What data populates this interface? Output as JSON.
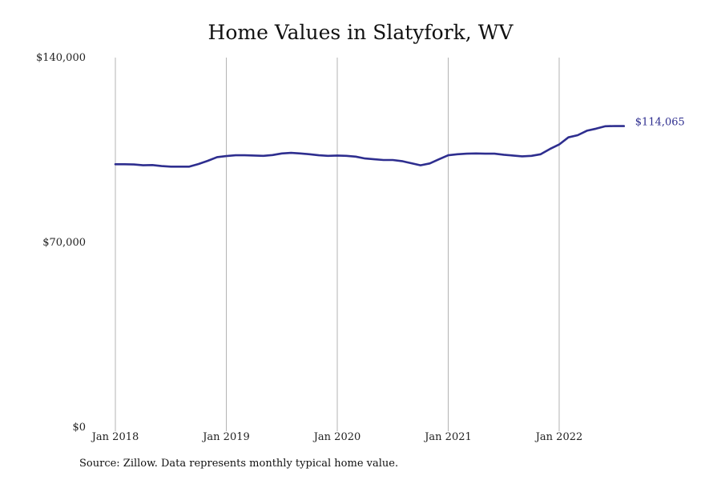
{
  "chart_data": {
    "type": "line",
    "title": "Home Values in Slatyfork, WV",
    "xlabel": "",
    "ylabel": "",
    "ylim": [
      0,
      140000
    ],
    "y_ticks": [
      {
        "value": 0,
        "label": "$0"
      },
      {
        "value": 70000,
        "label": "$70,000"
      },
      {
        "value": 140000,
        "label": "$140,000"
      }
    ],
    "x_ticks": [
      {
        "value": "2018-01",
        "label": "Jan 2018"
      },
      {
        "value": "2019-01",
        "label": "Jan 2019"
      },
      {
        "value": "2020-01",
        "label": "Jan 2020"
      },
      {
        "value": "2021-01",
        "label": "Jan 2021"
      },
      {
        "value": "2022-01",
        "label": "Jan 2022"
      }
    ],
    "grid": "vertical gridlines at year ticks",
    "series": [
      {
        "color": "#2e2e8f",
        "x": [
          "2018-01",
          "2018-02",
          "2018-03",
          "2018-04",
          "2018-05",
          "2018-06",
          "2018-07",
          "2018-08",
          "2018-09",
          "2018-10",
          "2018-11",
          "2018-12",
          "2019-01",
          "2019-02",
          "2019-03",
          "2019-04",
          "2019-05",
          "2019-06",
          "2019-07",
          "2019-08",
          "2019-09",
          "2019-10",
          "2019-11",
          "2019-12",
          "2020-01",
          "2020-02",
          "2020-03",
          "2020-04",
          "2020-05",
          "2020-06",
          "2020-07",
          "2020-08",
          "2020-09",
          "2020-10",
          "2020-11",
          "2020-12",
          "2021-01",
          "2021-02",
          "2021-03",
          "2021-04",
          "2021-05",
          "2021-06",
          "2021-07",
          "2021-08",
          "2021-09",
          "2021-10",
          "2021-11",
          "2021-12",
          "2022-01",
          "2022-02",
          "2022-03",
          "2022-04",
          "2022-05",
          "2022-06",
          "2022-07",
          "2022-08"
        ],
        "values": [
          99600,
          99600,
          99500,
          99200,
          99300,
          98900,
          98700,
          98700,
          98700,
          99700,
          100900,
          102300,
          102700,
          103000,
          103000,
          102900,
          102800,
          103100,
          103700,
          103900,
          103700,
          103400,
          103000,
          102800,
          102900,
          102800,
          102500,
          101800,
          101500,
          101200,
          101200,
          100800,
          100000,
          99200,
          99900,
          101500,
          103000,
          103400,
          103600,
          103700,
          103600,
          103600,
          103200,
          102900,
          102600,
          102800,
          103400,
          105400,
          107100,
          109800,
          110600,
          112300,
          113100,
          114000,
          114100,
          114065
        ]
      }
    ],
    "end_label": "$114,065"
  },
  "source_note": "Source: Zillow. Data represents monthly typical home value."
}
